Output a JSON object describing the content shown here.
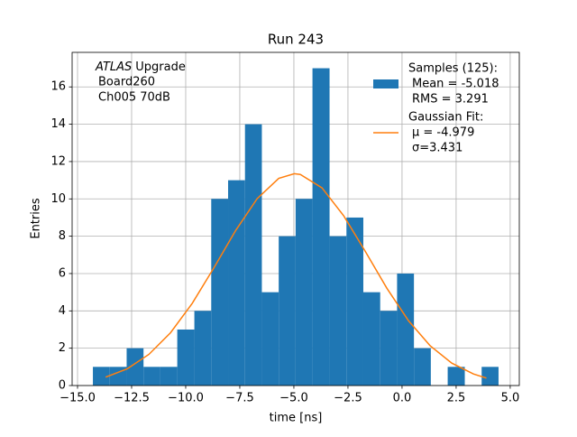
{
  "chart_data": {
    "type": "histogram",
    "title": "Run 243",
    "xlabel": "time [ns]",
    "ylabel": "Entries",
    "annotation": [
      "ATLAS",
      "Upgrade",
      "Board260",
      "Ch005 70dB"
    ],
    "xlim": [
      -15.25,
      5.42
    ],
    "ylim": [
      0,
      17.85
    ],
    "xticks": [
      {
        "value": -15,
        "label": "−15.0"
      },
      {
        "value": -12.5,
        "label": "−12.5"
      },
      {
        "value": -10,
        "label": "−10.0"
      },
      {
        "value": -7.5,
        "label": "−7.5"
      },
      {
        "value": -5,
        "label": "−5.0"
      },
      {
        "value": -2.5,
        "label": "−2.5"
      },
      {
        "value": 0,
        "label": "0.0"
      },
      {
        "value": 2.5,
        "label": "2.5"
      },
      {
        "value": 5,
        "label": "5.0"
      }
    ],
    "yticks": [
      0,
      2,
      4,
      6,
      8,
      10,
      12,
      14,
      16
    ],
    "grid": true,
    "legend": "upper right",
    "series": [
      {
        "name": "Samples (125):",
        "details": [
          "Mean = -5.018",
          "RMS = 3.291"
        ],
        "color": "#1f77b4",
        "type": "histogram",
        "bins": [
          -14.29,
          -13.51,
          -12.73,
          -11.95,
          -11.17,
          -10.39,
          -9.6,
          -8.82,
          -8.04,
          -7.26,
          -6.48,
          -5.7,
          -4.92,
          -4.14,
          -3.35,
          -2.57,
          -1.79,
          -1.01,
          -0.23,
          0.55,
          1.33,
          2.11,
          2.9,
          3.68,
          4.46
        ],
        "values": [
          1,
          1,
          2,
          1,
          1,
          3,
          4,
          10,
          11,
          14,
          5,
          8,
          10,
          17,
          8,
          9,
          5,
          4,
          6,
          2,
          0,
          1,
          0,
          1
        ]
      },
      {
        "name": "Gaussian Fit:",
        "details": [
          "μ = -4.979",
          "σ=3.431"
        ],
        "color": "#ff7f0e",
        "type": "line",
        "x": [
          -13.7,
          -12.7,
          -11.7,
          -10.7,
          -9.7,
          -8.7,
          -7.7,
          -6.7,
          -5.7,
          -4.979,
          -4.7,
          -3.7,
          -2.7,
          -1.7,
          -0.7,
          0.3,
          1.3,
          2.3,
          3.3,
          3.9
        ],
        "values": [
          0.45,
          0.9,
          1.67,
          2.83,
          4.4,
          6.3,
          8.29,
          10.01,
          11.1,
          11.35,
          11.31,
          10.59,
          9.1,
          7.19,
          5.21,
          3.47,
          2.13,
          1.2,
          0.62,
          0.4
        ]
      }
    ]
  }
}
